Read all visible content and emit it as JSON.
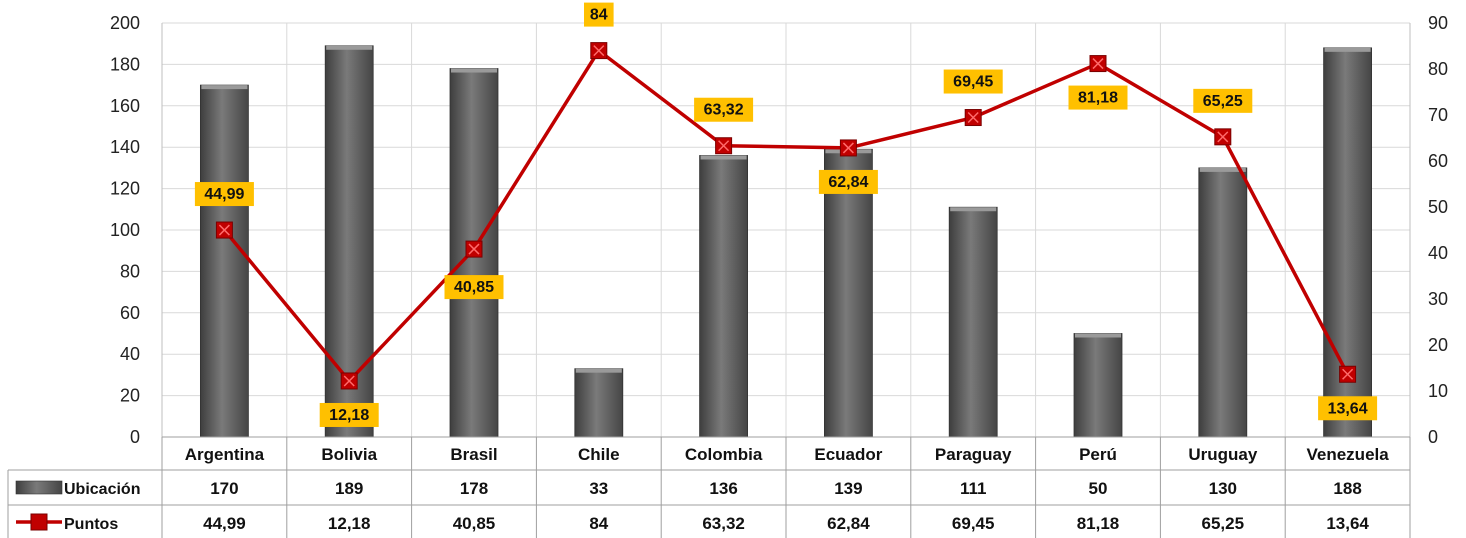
{
  "chart_data": {
    "type": "bar",
    "categories": [
      "Argentina",
      "Bolivia",
      "Brasil",
      "Chile",
      "Colombia",
      "Ecuador",
      "Paraguay",
      "Perú",
      "Uruguay",
      "Venezuela"
    ],
    "series": [
      {
        "name": "Ubicación",
        "type": "bar",
        "axis": "left",
        "values": [
          170,
          189,
          178,
          33,
          136,
          139,
          111,
          50,
          130,
          188
        ],
        "labels": [
          "170",
          "189",
          "178",
          "33",
          "136",
          "139",
          "111",
          "50",
          "130",
          "188"
        ],
        "color": "#5f5f5f"
      },
      {
        "name": "Puntos",
        "type": "line",
        "axis": "right",
        "values": [
          44.99,
          12.18,
          40.85,
          84,
          63.32,
          62.84,
          69.45,
          81.18,
          65.25,
          13.64
        ],
        "labels": [
          "44,99",
          "12,18",
          "40,85",
          "84",
          "63,32",
          "62,84",
          "69,45",
          "81,18",
          "65,25",
          "13,64"
        ],
        "color": "#c00000"
      }
    ],
    "ylim_left": [
      0,
      200
    ],
    "yticks_left": [
      "0",
      "20",
      "40",
      "60",
      "80",
      "100",
      "120",
      "140",
      "160",
      "180",
      "200"
    ],
    "ylim_right": [
      0,
      90
    ],
    "yticks_right": [
      "0",
      "10",
      "20",
      "30",
      "40",
      "50",
      "60",
      "70",
      "80",
      "90"
    ],
    "grid": true,
    "legend": "data table",
    "label_box_color": "#ffc000"
  }
}
